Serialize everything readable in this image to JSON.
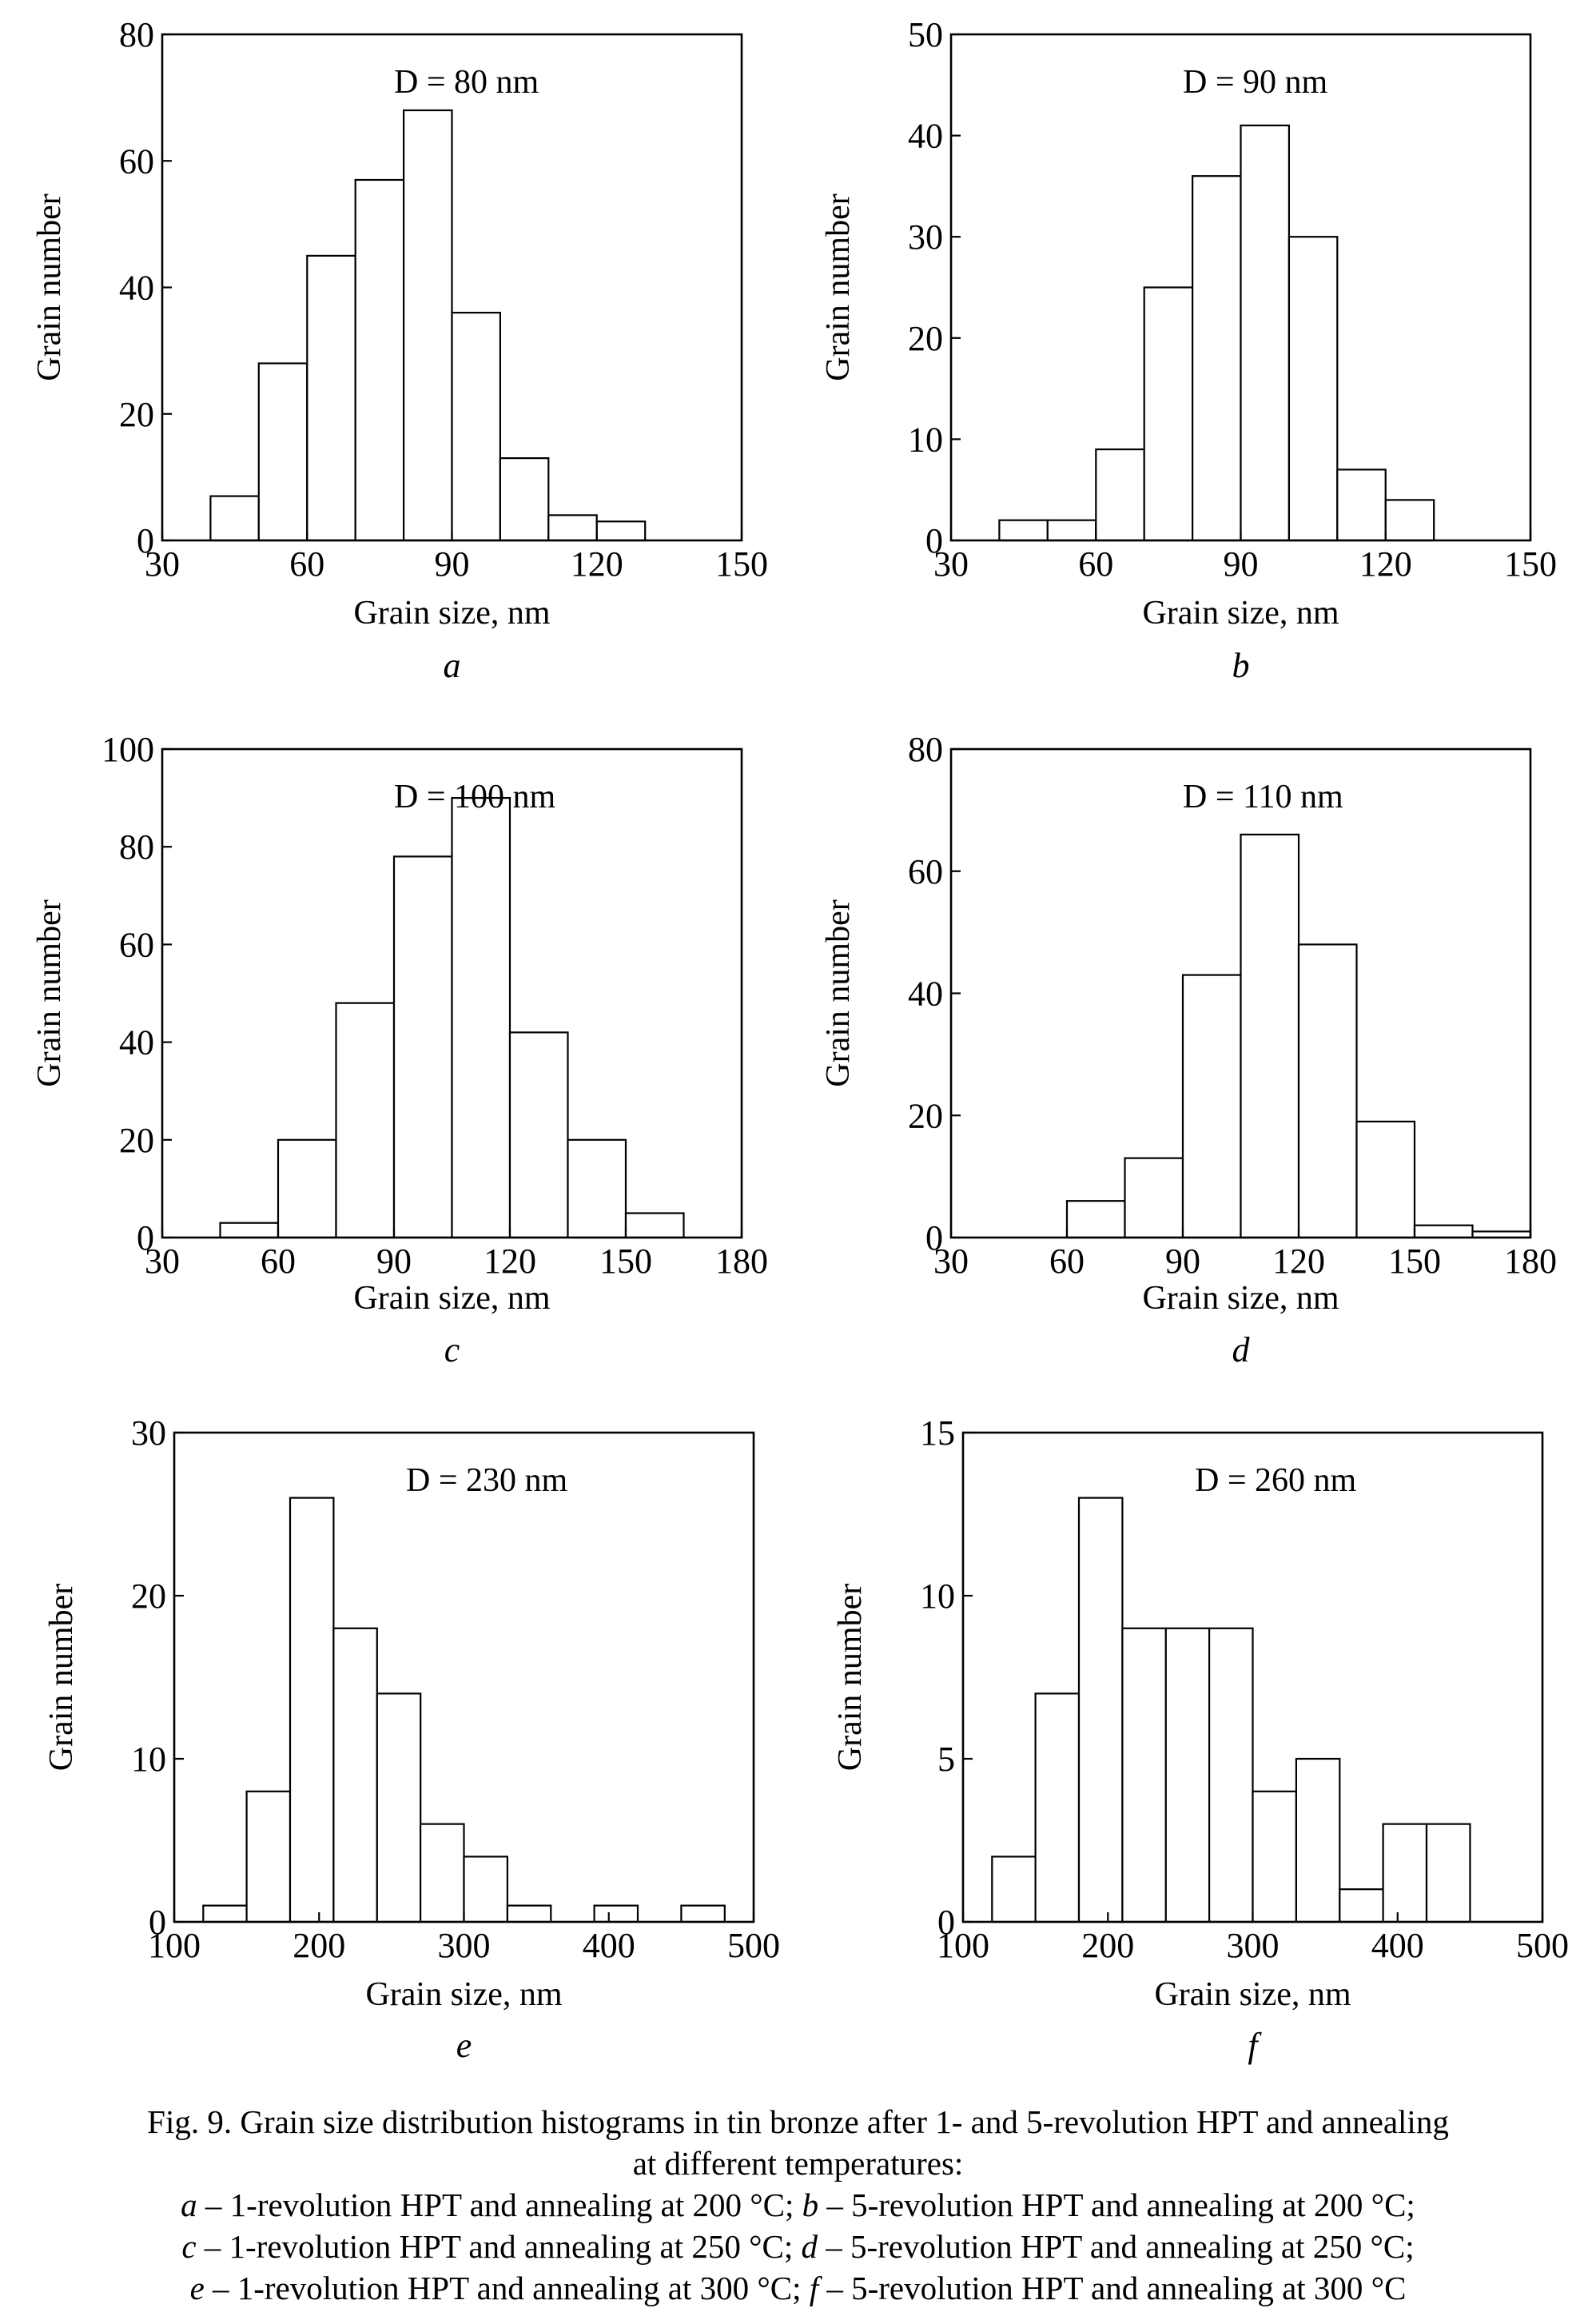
{
  "chart_data": [
    {
      "type": "bar",
      "panel": "a",
      "annotation": "D = 80 nm",
      "xlabel": "Grain size, nm",
      "ylabel": "Grain number",
      "xlim": [
        30,
        150
      ],
      "ylim": [
        0,
        80
      ],
      "xticks": [
        30,
        60,
        90,
        120,
        150
      ],
      "yticks": [
        0,
        20,
        40,
        60,
        80
      ],
      "bin_edges": [
        40,
        50,
        60,
        70,
        80,
        90,
        100,
        110,
        120,
        130
      ],
      "values": [
        7,
        28,
        45,
        57,
        68,
        36,
        13,
        4,
        3
      ]
    },
    {
      "type": "bar",
      "panel": "b",
      "annotation": "D = 90 nm",
      "xlabel": "Grain size, nm",
      "ylabel": "Grain number",
      "xlim": [
        30,
        150
      ],
      "ylim": [
        0,
        50
      ],
      "xticks": [
        30,
        60,
        90,
        120,
        150
      ],
      "yticks": [
        0,
        10,
        20,
        30,
        40,
        50
      ],
      "bin_edges": [
        40,
        50,
        60,
        70,
        80,
        90,
        100,
        110,
        120,
        130
      ],
      "values": [
        2,
        2,
        9,
        25,
        36,
        41,
        30,
        7,
        4
      ]
    },
    {
      "type": "bar",
      "panel": "c",
      "annotation": "D = 100 nm",
      "xlabel": "Grain size, nm",
      "ylabel": "Grain number",
      "xlim": [
        30,
        180
      ],
      "ylim": [
        0,
        100
      ],
      "xticks": [
        30,
        60,
        90,
        120,
        150,
        180
      ],
      "yticks": [
        0,
        20,
        40,
        60,
        80,
        100
      ],
      "bin_edges": [
        45,
        60,
        75,
        90,
        105,
        120,
        135,
        150,
        165
      ],
      "values": [
        3,
        20,
        48,
        78,
        90,
        42,
        20,
        5
      ]
    },
    {
      "type": "bar",
      "panel": "d",
      "annotation": "D = 110 nm",
      "xlabel": "Grain size, nm",
      "ylabel": "Grain number",
      "xlim": [
        30,
        180
      ],
      "ylim": [
        0,
        80
      ],
      "xticks": [
        30,
        60,
        90,
        120,
        150,
        180
      ],
      "yticks": [
        0,
        20,
        40,
        60,
        80
      ],
      "bin_edges": [
        60,
        75,
        90,
        105,
        120,
        135,
        150,
        165,
        180
      ],
      "values": [
        6,
        13,
        43,
        66,
        48,
        19,
        2,
        1
      ]
    },
    {
      "type": "bar",
      "panel": "e",
      "annotation": "D = 230 nm",
      "xlabel": "Grain size, nm",
      "ylabel": "Grain number",
      "xlim": [
        100,
        500
      ],
      "ylim": [
        0,
        30
      ],
      "xticks": [
        100,
        200,
        300,
        400,
        500
      ],
      "yticks": [
        0,
        10,
        20,
        30
      ],
      "bin_edges": [
        120,
        150,
        180,
        210,
        240,
        270,
        300,
        330,
        360,
        390,
        420,
        450,
        480
      ],
      "values": [
        1,
        8,
        26,
        18,
        14,
        6,
        4,
        1,
        0,
        1,
        0,
        1
      ]
    },
    {
      "type": "bar",
      "panel": "f",
      "annotation": "D = 260 nm",
      "xlabel": "Grain size, nm",
      "ylabel": "Grain number",
      "xlim": [
        100,
        500
      ],
      "ylim": [
        0,
        15
      ],
      "xticks": [
        100,
        200,
        300,
        400,
        500
      ],
      "yticks": [
        0,
        5,
        10,
        15
      ],
      "bin_edges": [
        120,
        150,
        180,
        210,
        240,
        270,
        300,
        330,
        360,
        390,
        420,
        450
      ],
      "values": [
        2,
        7,
        13,
        9,
        9,
        9,
        4,
        5,
        1,
        3,
        3
      ]
    }
  ],
  "caption": {
    "line1": "Fig. 9. Grain size distribution histograms in tin bronze after 1- and 5-revolution HPT and annealing",
    "line2": "at different temperatures:",
    "items": [
      {
        "letter": "a",
        "text": " – 1-revolution HPT and annealing at 200 °C; "
      },
      {
        "letter": "b",
        "text": " – 5-revolution HPT and annealing at 200 °C;"
      },
      {
        "letter": "c",
        "text": " – 1-revolution HPT and annealing at 250 °C; "
      },
      {
        "letter": "d",
        "text": " – 5-revolution HPT and annealing at 250 °C;"
      },
      {
        "letter": "e",
        "text": " – 1-revolution HPT and annealing at 300 °C; "
      },
      {
        "letter": "f",
        "text": " – 5-revolution HPT and annealing at 300 °C"
      }
    ]
  }
}
